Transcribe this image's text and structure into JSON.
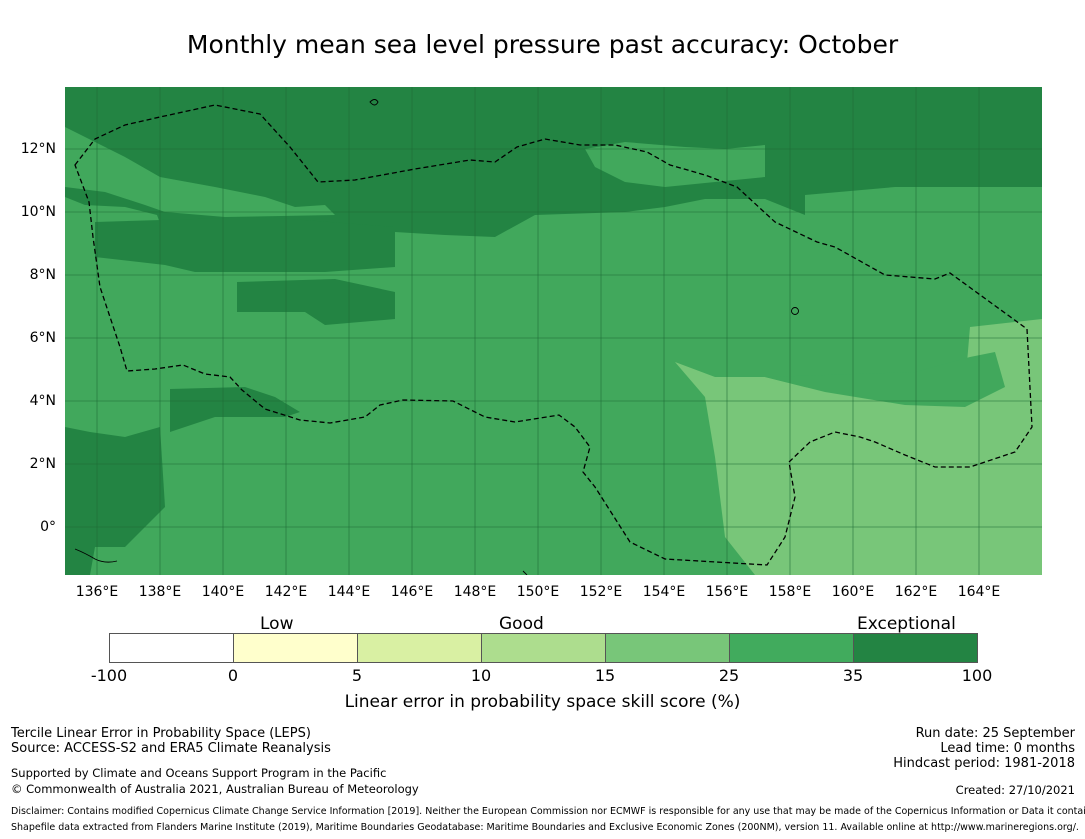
{
  "title": "Monthly mean sea level pressure past accuracy: October",
  "map": {
    "lon_ticks": [
      "136°E",
      "138°E",
      "140°E",
      "142°E",
      "144°E",
      "146°E",
      "148°E",
      "150°E",
      "152°E",
      "154°E",
      "156°E",
      "158°E",
      "160°E",
      "162°E",
      "164°E"
    ],
    "lat_ticks": [
      "12°N",
      "10°N",
      "8°N",
      "6°N",
      "4°N",
      "2°N",
      "0°"
    ],
    "colors": {
      "exceptional": "#238443",
      "good_high": "#41ab5d",
      "good_mid": "#78c679",
      "outline": "#000000",
      "gridline": "#1f6b36"
    },
    "region": "Exclusive Economic Zone (dashed outline)"
  },
  "colorbar": {
    "categories": [
      {
        "label": "Low",
        "center_index": 1
      },
      {
        "label": "Good",
        "center_index": 3
      },
      {
        "label": "Exceptional",
        "center_index": 5
      }
    ],
    "boundaries": [
      "-100",
      "0",
      "5",
      "10",
      "15",
      "25",
      "35",
      "100"
    ],
    "colors": [
      "#ffffff",
      "#ffffcc",
      "#d9f0a3",
      "#addd8e",
      "#78c679",
      "#41ab5d",
      "#238443"
    ],
    "label": "Linear error in probability space skill score (%)"
  },
  "footer": {
    "left": {
      "line1": "Tercile Linear Error in Probability Space (LEPS)",
      "line2": "Source: ACCESS-S2 and ERA5 Climate Reanalysis",
      "line3": "Supported by Climate and Oceans Support Program in the Pacific",
      "line4": "© Commonwealth of Australia 2021, Australian Bureau of Meteorology"
    },
    "right": {
      "run_date": "Run date: 25 September",
      "lead_time": "Lead time: 0 months",
      "hindcast": "Hindcast period: 1981-2018",
      "created": "Created: 27/10/2021"
    },
    "disclaimer1": "Disclaimer: Contains modified Copernicus Climate Change Service Information [2019]. Neither the European Commission nor ECMWF is responsible for any use that may be made of the Copernicus Information or Data it contains.",
    "disclaimer2": "Shapefile data extracted from Flanders Marine Institute (2019), Maritime Boundaries Geodatabase: Maritime Boundaries and Exclusive Economic Zones (200NM), version 11. Available online at http://www.marineregions.org/."
  }
}
